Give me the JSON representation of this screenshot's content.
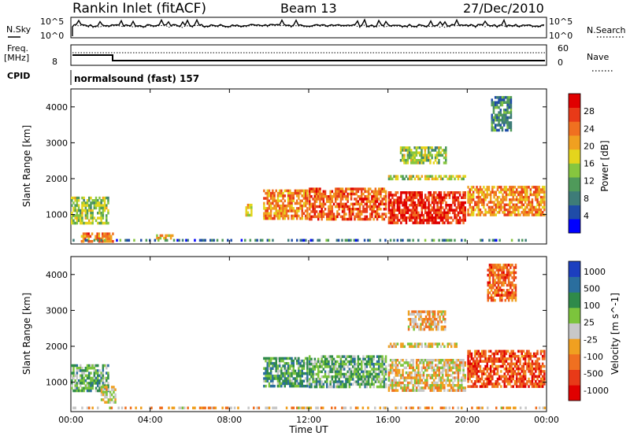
{
  "header": {
    "station": "Rankin Inlet (fitACF)",
    "beam": "Beam 13",
    "date": "27/Dec/2010"
  },
  "summary_panels": {
    "nsky_label": "N.Sky",
    "nsky_ticks": [
      "10^5",
      "10^0"
    ],
    "nsearch_label": "N.Search",
    "nsearch_ticks": [
      "10^5",
      "10^0"
    ],
    "freq_label": "Freq.",
    "freq_unit": "[MHz]",
    "freq_tick": "8",
    "nave_label": "Nave",
    "nave_ticks": [
      "60",
      "0"
    ],
    "cpid_label": "CPID",
    "cpid_value": "normalsound (fast) 157"
  },
  "chart_data": [
    {
      "type": "heatmap",
      "name": "power",
      "ylabel": "Slant Range [km]",
      "yticks": [
        "1000",
        "2000",
        "3000",
        "4000"
      ],
      "ylim": [
        180,
        4500
      ],
      "xlim": [
        0,
        24
      ],
      "colorbar_label": "Power [dB]",
      "colorbar_ticks": [
        "4",
        "8",
        "12",
        "16",
        "20",
        "24",
        "28"
      ],
      "colorbar_range": [
        0,
        32
      ],
      "colorscale": [
        "#0000ff",
        "#1f4ca8",
        "#3e7c78",
        "#4f9a5a",
        "#86c63f",
        "#e4d51c",
        "#f0a020",
        "#f07020",
        "#e83a18",
        "#e00000"
      ],
      "regions": [
        {
          "x0": 0.0,
          "x1": 2.0,
          "y0": 700,
          "y1": 1500,
          "level": 0.45
        },
        {
          "x0": 0.5,
          "x1": 2.2,
          "y0": 200,
          "y1": 500,
          "level": 0.75
        },
        {
          "x0": 4.3,
          "x1": 5.2,
          "y0": 250,
          "y1": 450,
          "level": 0.6
        },
        {
          "x0": 8.8,
          "x1": 9.2,
          "y0": 900,
          "y1": 1300,
          "level": 0.55
        },
        {
          "x0": 9.7,
          "x1": 12.0,
          "y0": 800,
          "y1": 1700,
          "level": 0.7
        },
        {
          "x0": 12.0,
          "x1": 16.0,
          "y0": 800,
          "y1": 1750,
          "level": 0.78
        },
        {
          "x0": 16.0,
          "x1": 20.0,
          "y0": 700,
          "y1": 1650,
          "level": 0.88
        },
        {
          "x0": 20.0,
          "x1": 24.0,
          "y0": 900,
          "y1": 1800,
          "level": 0.7
        },
        {
          "x0": 16.0,
          "x1": 20.0,
          "y0": 1900,
          "y1": 2100,
          "level": 0.5
        },
        {
          "x0": 16.6,
          "x1": 19.0,
          "y0": 2400,
          "y1": 2900,
          "level": 0.45
        },
        {
          "x0": 21.2,
          "x1": 22.3,
          "y0": 3300,
          "y1": 4300,
          "level": 0.3
        },
        {
          "x0": 0.0,
          "x1": 24.0,
          "y0": 180,
          "y1": 320,
          "level": 0.25
        }
      ]
    },
    {
      "type": "heatmap",
      "name": "velocity",
      "ylabel": "Slant Range [km]",
      "yticks": [
        "1000",
        "2000",
        "3000",
        "4000"
      ],
      "ylim": [
        180,
        4500
      ],
      "xlim": [
        0,
        24
      ],
      "xlabel": "Time UT",
      "xticks": [
        "00:00",
        "04:00",
        "08:00",
        "12:00",
        "16:00",
        "20:00",
        "00:00"
      ],
      "colorbar_label": "Velocity [m s^-1]",
      "colorbar_ticks": [
        "1000",
        "500",
        "100",
        "25",
        "-25",
        "-100",
        "-500",
        "-1000"
      ],
      "colorscale": [
        "#1c3fbf",
        "#2a6e9e",
        "#2f8a4a",
        "#7cc43c",
        "#c8c8c8",
        "#f0a020",
        "#f07020",
        "#e83a18",
        "#e00000"
      ],
      "regions": [
        {
          "x0": 0.0,
          "x1": 2.0,
          "y0": 700,
          "y1": 1500,
          "level": 0.35
        },
        {
          "x0": 1.5,
          "x1": 2.3,
          "y0": 400,
          "y1": 900,
          "level": 0.5
        },
        {
          "x0": 9.7,
          "x1": 12.0,
          "y0": 800,
          "y1": 1700,
          "level": 0.3
        },
        {
          "x0": 12.0,
          "x1": 16.0,
          "y0": 800,
          "y1": 1750,
          "level": 0.35
        },
        {
          "x0": 16.0,
          "x1": 20.0,
          "y0": 700,
          "y1": 1650,
          "level": 0.55
        },
        {
          "x0": 20.0,
          "x1": 24.0,
          "y0": 800,
          "y1": 1900,
          "level": 0.8
        },
        {
          "x0": 16.0,
          "x1": 19.5,
          "y0": 1900,
          "y1": 2100,
          "level": 0.52
        },
        {
          "x0": 17.0,
          "x1": 19.0,
          "y0": 2400,
          "y1": 3000,
          "level": 0.6
        },
        {
          "x0": 21.0,
          "x1": 22.5,
          "y0": 3200,
          "y1": 4300,
          "level": 0.75
        },
        {
          "x0": 0.0,
          "x1": 24.0,
          "y0": 180,
          "y1": 320,
          "level": 0.6
        }
      ]
    }
  ]
}
